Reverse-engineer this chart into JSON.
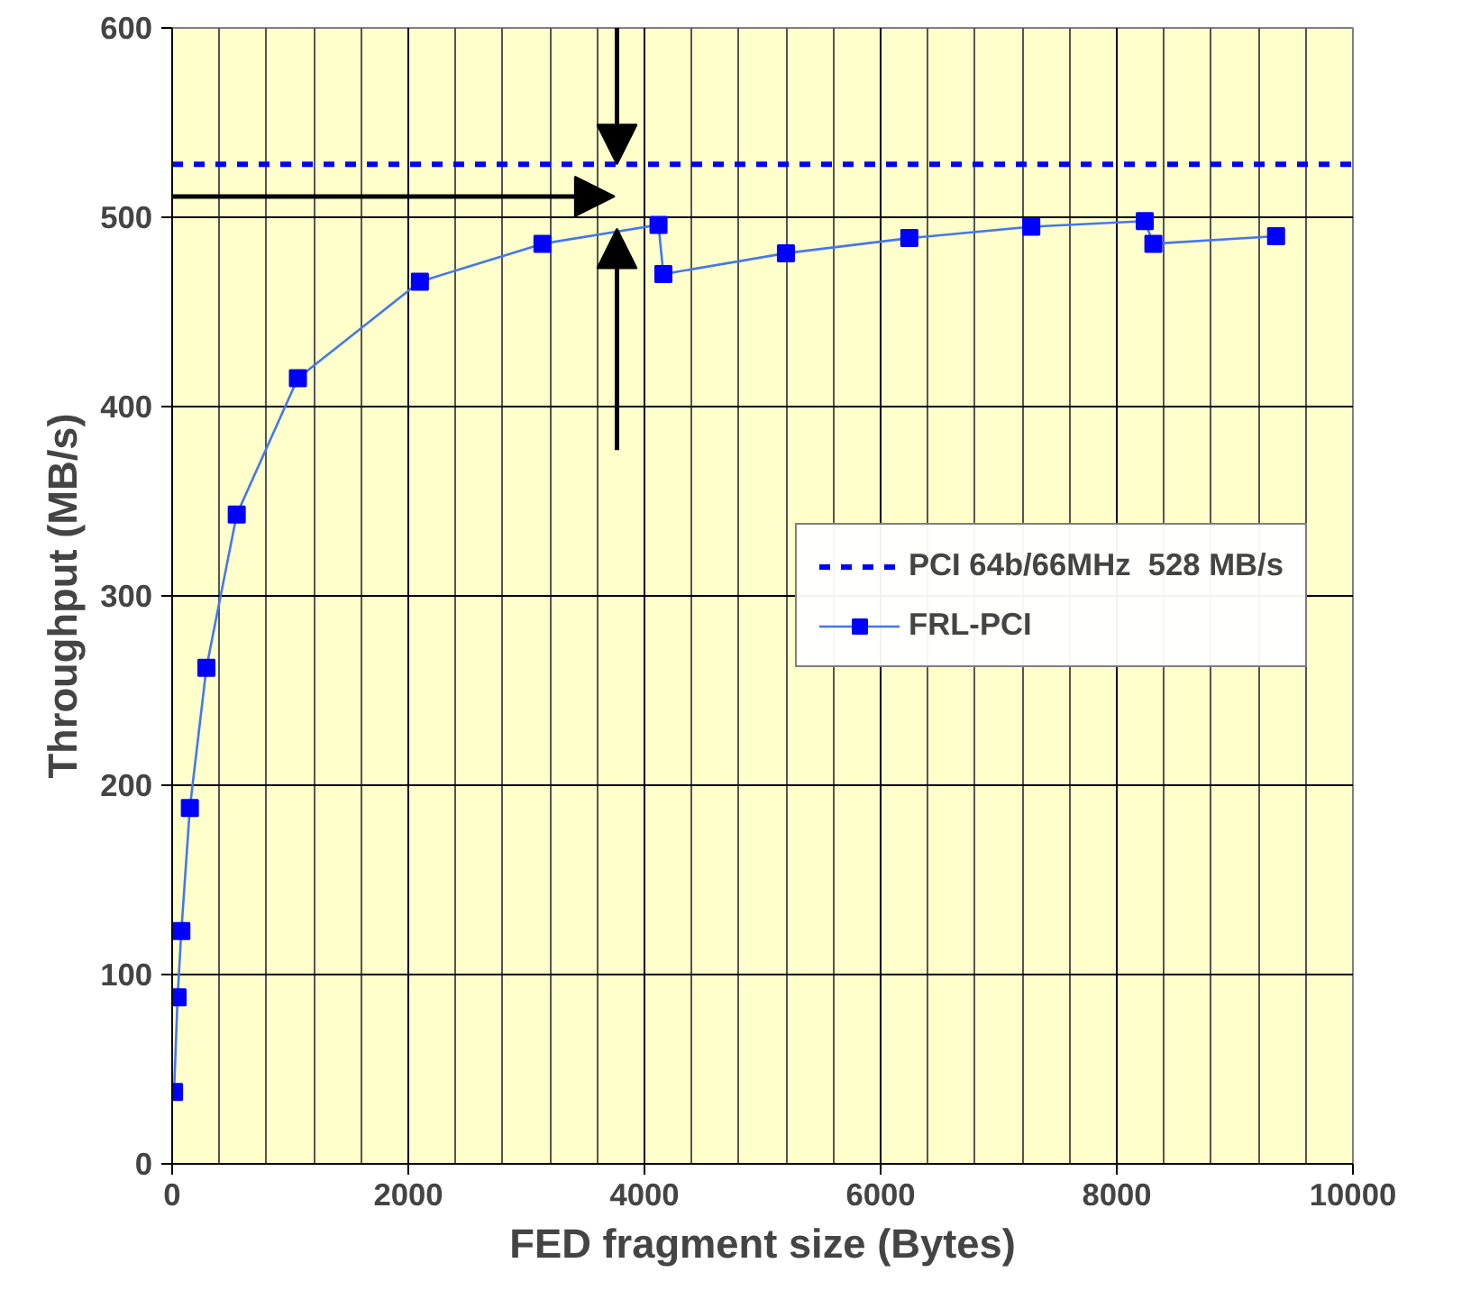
{
  "chart_data": {
    "type": "line",
    "xlabel": "FED fragment size (Bytes)",
    "ylabel": "Throughput (MB/s)",
    "x": [
      16,
      46,
      78,
      150,
      290,
      547,
      1065,
      2098,
      3136,
      4119,
      4160,
      5198,
      6243,
      7276,
      8237,
      8310,
      9349
    ],
    "series": [
      {
        "name": "FRL-PCI",
        "color": "#0000ff",
        "values": [
          38,
          88,
          123,
          188,
          262,
          343,
          415,
          466,
          486,
          496,
          470,
          481,
          489,
          495,
          498,
          486,
          490
        ]
      }
    ],
    "ref_lines": [
      {
        "axis": "y",
        "value": 528,
        "label": "PCI 64b/66MHz  528 MB/s",
        "color": "#0000ff",
        "line_style": "dashed"
      }
    ],
    "xlim": [
      0,
      10000
    ],
    "ylim": [
      0,
      600
    ],
    "xticks": [
      0,
      {
        "value": 400,
        "label": null
      },
      {
        "value": 800,
        "label": null
      },
      {
        "value": 1200,
        "label": null
      },
      {
        "value": 1600,
        "label": null
      },
      2000,
      {
        "value": 2400,
        "label": null
      },
      {
        "value": 2800,
        "label": null
      },
      {
        "value": 3200,
        "label": null
      },
      {
        "value": 3600,
        "label": null
      },
      4000,
      {
        "value": 4400,
        "label": null
      },
      {
        "value": 4800,
        "label": null
      },
      {
        "value": 5200,
        "label": null
      },
      {
        "value": 5600,
        "label": null
      },
      6000,
      {
        "value": 6400,
        "label": null
      },
      {
        "value": 6800,
        "label": null
      },
      {
        "value": 7200,
        "label": null
      },
      {
        "value": 7600,
        "label": null
      },
      8000,
      {
        "value": 8400,
        "label": null
      },
      {
        "value": 8800,
        "label": null
      },
      {
        "value": 9200,
        "label": null
      },
      {
        "value": 9600,
        "label": null
      },
      10000
    ],
    "yticks": [
      0,
      100,
      200,
      300,
      400,
      500,
      600
    ],
    "grid": true,
    "legend": "right",
    "marker": "square",
    "line_style": "solid"
  }
}
